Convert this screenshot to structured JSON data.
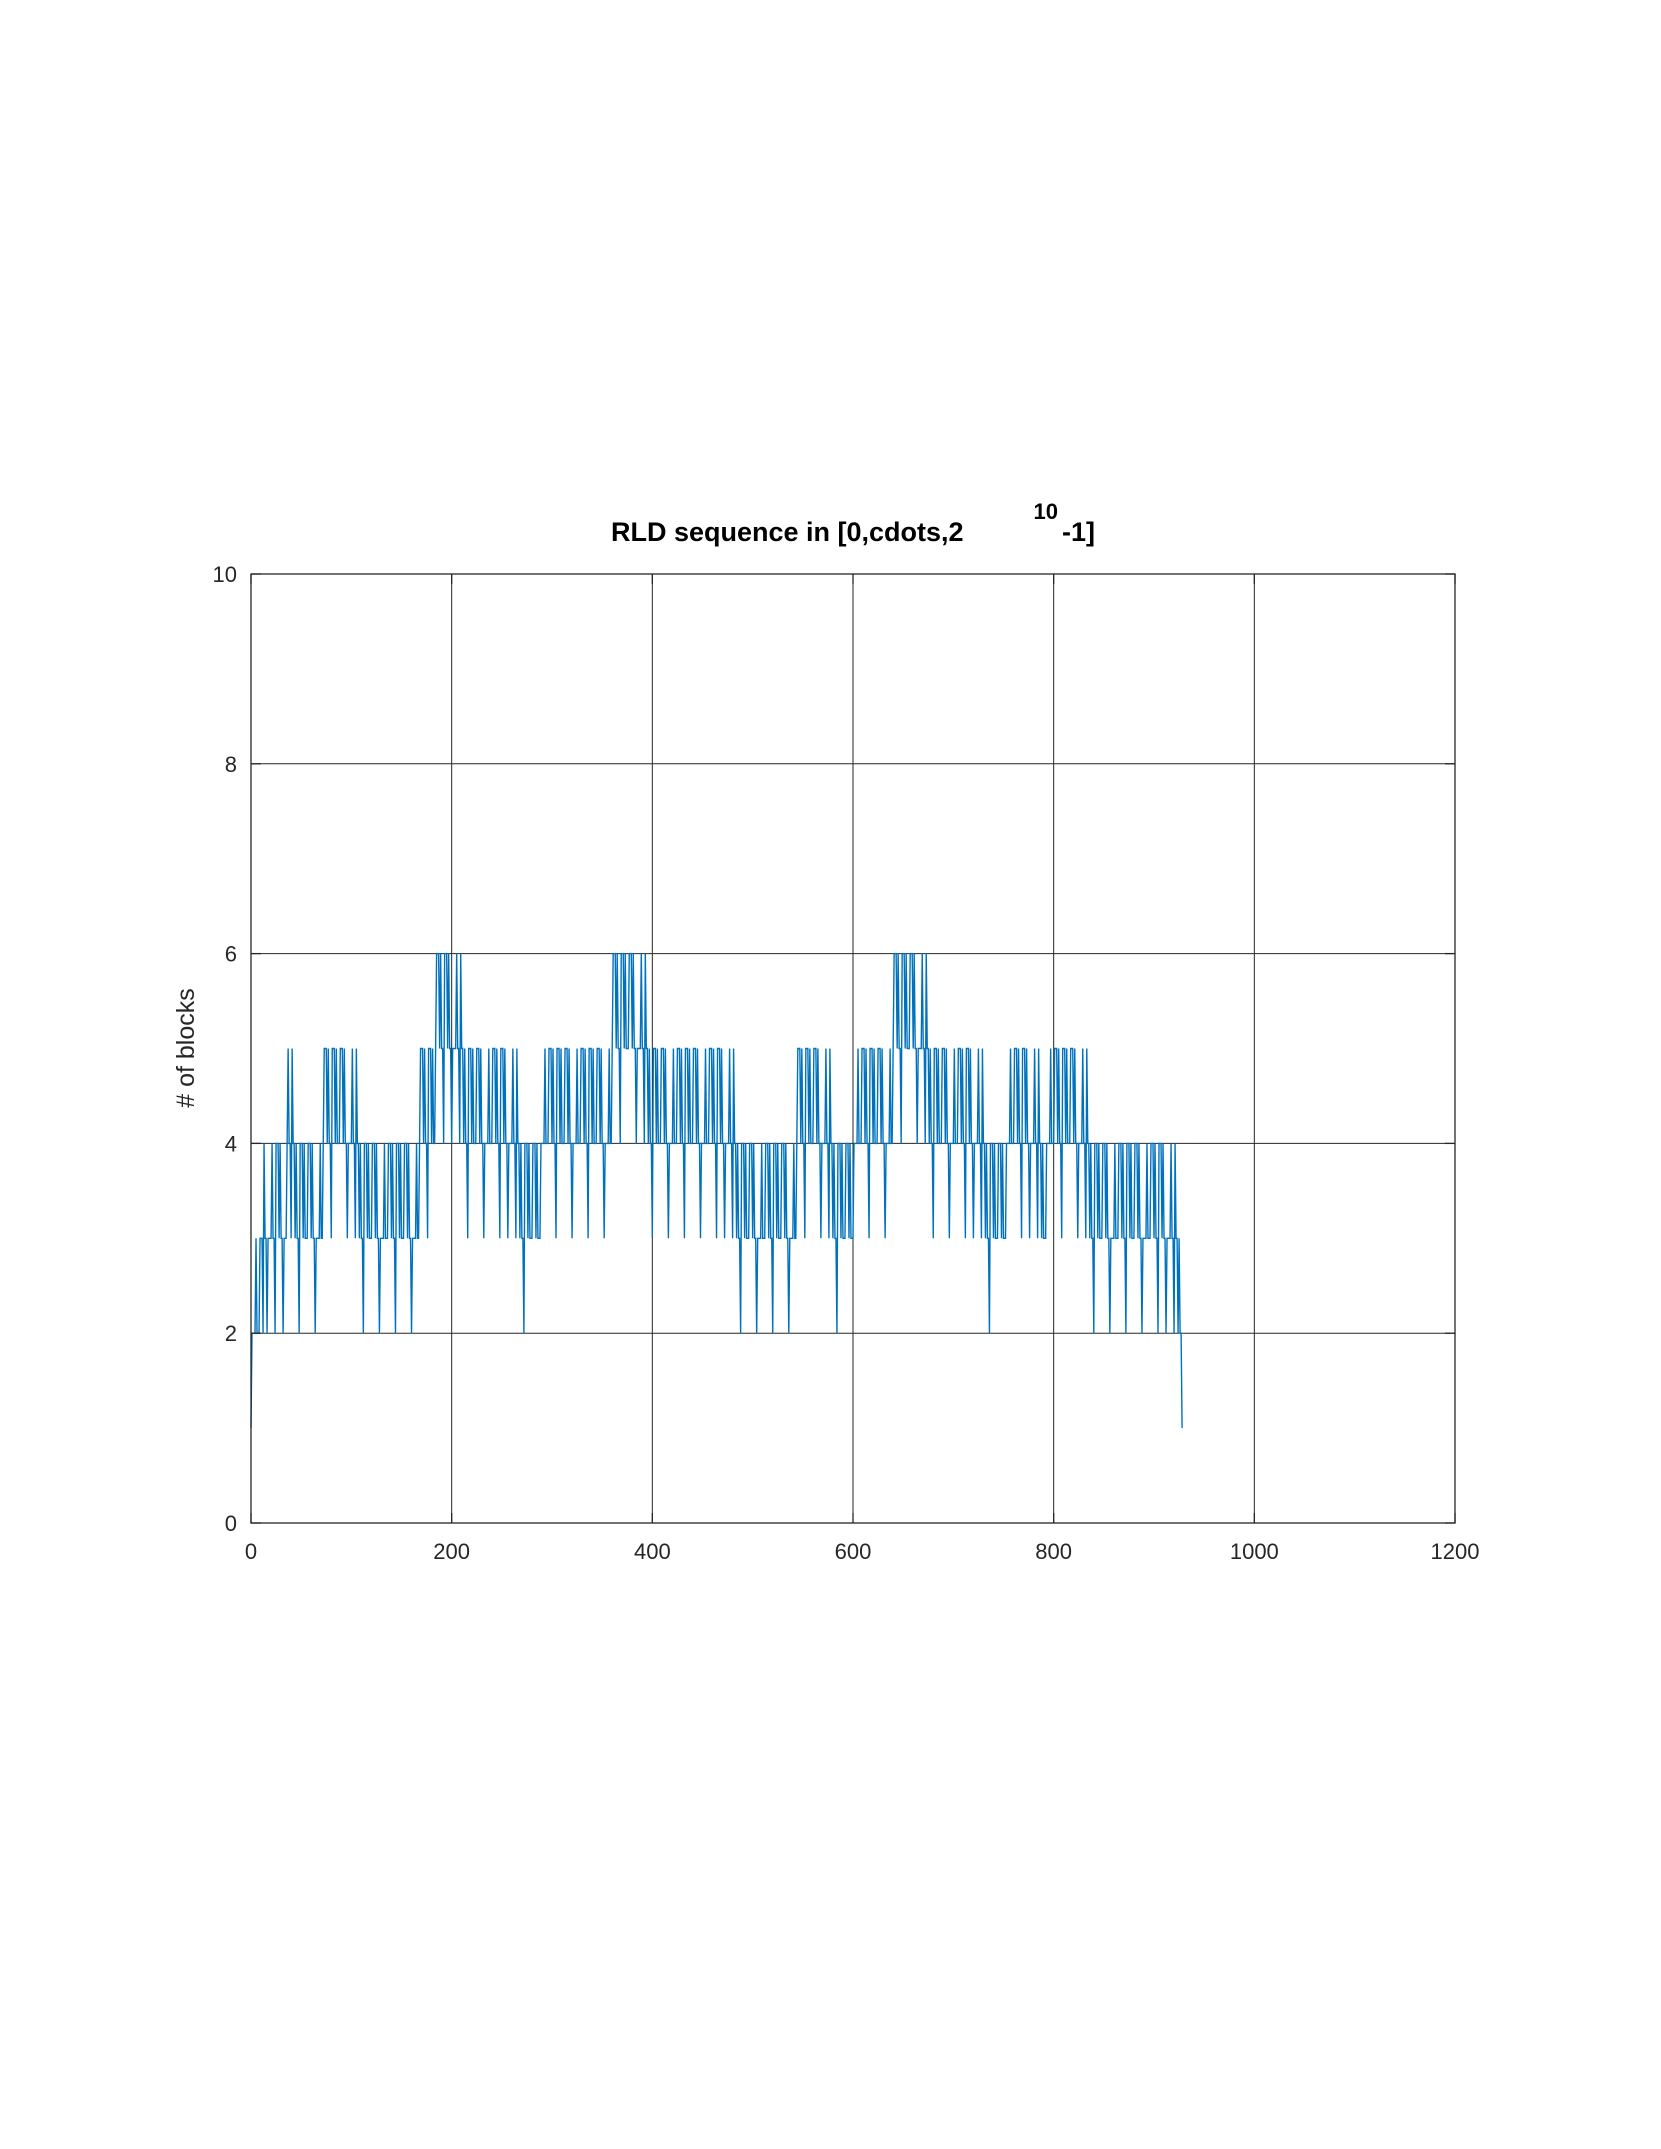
{
  "chart_data": {
    "type": "line",
    "title": "RLD sequence in [0,cdots,2",
    "title_superscript": "10",
    "title_suffix": "-1]",
    "xlabel": "",
    "ylabel": "# of blocks",
    "xlim": [
      0,
      1200
    ],
    "ylim": [
      0,
      10
    ],
    "xticks": [
      0,
      200,
      400,
      600,
      800,
      1000,
      1200
    ],
    "yticks": [
      0,
      2,
      4,
      6,
      8,
      10
    ],
    "grid": true,
    "series": [
      {
        "color": "#0072BD",
        "x_start": 0,
        "x_step": 1,
        "values": [
          1,
          2,
          2,
          2,
          2,
          3,
          2,
          2,
          2,
          3,
          3,
          3,
          2,
          4,
          3,
          3,
          2,
          3,
          3,
          3,
          3,
          4,
          3,
          3,
          2,
          4,
          4,
          4,
          3,
          4,
          3,
          3,
          2,
          3,
          3,
          3,
          4,
          5,
          4,
          4,
          3,
          5,
          4,
          4,
          3,
          4,
          3,
          3,
          2,
          4,
          4,
          4,
          3,
          4,
          3,
          3,
          3,
          4,
          4,
          4,
          3,
          4,
          3,
          3,
          2,
          3,
          3,
          3,
          3,
          4,
          3,
          3,
          4,
          5,
          5,
          5,
          4,
          5,
          4,
          4,
          3,
          5,
          5,
          5,
          4,
          5,
          4,
          4,
          4,
          5,
          5,
          5,
          4,
          5,
          4,
          4,
          3,
          4,
          4,
          4,
          4,
          5,
          4,
          4,
          3,
          5,
          4,
          4,
          3,
          4,
          3,
          3,
          2,
          4,
          4,
          4,
          3,
          4,
          3,
          3,
          3,
          4,
          4,
          4,
          3,
          4,
          3,
          3,
          2,
          3,
          3,
          3,
          3,
          4,
          3,
          3,
          3,
          4,
          4,
          4,
          3,
          4,
          3,
          3,
          2,
          4,
          4,
          4,
          3,
          4,
          3,
          3,
          3,
          4,
          4,
          4,
          3,
          4,
          3,
          3,
          2,
          3,
          3,
          3,
          3,
          4,
          3,
          3,
          4,
          5,
          5,
          5,
          4,
          5,
          4,
          4,
          3,
          5,
          5,
          5,
          4,
          5,
          4,
          4,
          5,
          6,
          6,
          6,
          5,
          6,
          5,
          5,
          4,
          6,
          6,
          6,
          5,
          6,
          5,
          5,
          4,
          5,
          5,
          5,
          5,
          6,
          5,
          5,
          4,
          6,
          5,
          5,
          4,
          5,
          4,
          4,
          3,
          5,
          5,
          5,
          4,
          5,
          4,
          4,
          4,
          5,
          5,
          5,
          4,
          5,
          4,
          4,
          3,
          4,
          4,
          4,
          4,
          5,
          4,
          4,
          4,
          5,
          5,
          5,
          4,
          5,
          4,
          4,
          3,
          5,
          5,
          5,
          4,
          5,
          4,
          4,
          3,
          4,
          4,
          4,
          4,
          5,
          4,
          4,
          3,
          5,
          4,
          4,
          3,
          4,
          3,
          3,
          2,
          4,
          4,
          4,
          3,
          4,
          3,
          3,
          3,
          4,
          4,
          4,
          3,
          4,
          3,
          3,
          3,
          4,
          4,
          4,
          4,
          5,
          4,
          4,
          4,
          5,
          5,
          5,
          4,
          5,
          4,
          4,
          3,
          5,
          5,
          5,
          4,
          5,
          4,
          4,
          4,
          5,
          5,
          5,
          4,
          5,
          4,
          4,
          3,
          4,
          4,
          4,
          4,
          5,
          4,
          4,
          4,
          5,
          5,
          5,
          4,
          5,
          4,
          4,
          3,
          5,
          5,
          5,
          4,
          5,
          4,
          4,
          4,
          5,
          5,
          5,
          4,
          5,
          4,
          4,
          3,
          4,
          4,
          4,
          4,
          5,
          4,
          4,
          5,
          6,
          6,
          6,
          5,
          6,
          5,
          5,
          4,
          6,
          6,
          6,
          5,
          6,
          5,
          5,
          5,
          6,
          6,
          6,
          5,
          6,
          5,
          5,
          4,
          5,
          5,
          5,
          5,
          6,
          5,
          5,
          4,
          6,
          5,
          5,
          4,
          5,
          4,
          4,
          3,
          5,
          5,
          5,
          4,
          5,
          4,
          4,
          4,
          5,
          5,
          5,
          4,
          5,
          4,
          4,
          3,
          4,
          4,
          4,
          4,
          5,
          4,
          4,
          4,
          5,
          5,
          5,
          4,
          5,
          4,
          4,
          3,
          5,
          5,
          5,
          4,
          5,
          4,
          4,
          4,
          5,
          5,
          5,
          4,
          5,
          4,
          4,
          3,
          4,
          4,
          4,
          4,
          5,
          4,
          4,
          4,
          5,
          5,
          5,
          4,
          5,
          4,
          4,
          3,
          5,
          5,
          5,
          4,
          5,
          4,
          4,
          3,
          4,
          4,
          4,
          4,
          5,
          4,
          4,
          3,
          5,
          4,
          4,
          3,
          4,
          3,
          3,
          2,
          4,
          4,
          4,
          3,
          4,
          3,
          3,
          3,
          4,
          4,
          4,
          3,
          4,
          3,
          3,
          2,
          3,
          3,
          3,
          3,
          4,
          3,
          3,
          3,
          4,
          4,
          4,
          3,
          4,
          3,
          3,
          2,
          4,
          4,
          4,
          3,
          4,
          3,
          3,
          3,
          4,
          4,
          4,
          3,
          4,
          3,
          3,
          2,
          3,
          3,
          3,
          3,
          4,
          3,
          3,
          4,
          5,
          5,
          5,
          4,
          5,
          4,
          4,
          3,
          5,
          5,
          5,
          4,
          5,
          4,
          4,
          4,
          5,
          5,
          5,
          4,
          5,
          4,
          4,
          3,
          4,
          4,
          4,
          4,
          5,
          4,
          4,
          3,
          5,
          4,
          4,
          3,
          4,
          3,
          3,
          2,
          4,
          4,
          4,
          3,
          4,
          3,
          3,
          3,
          4,
          4,
          4,
          3,
          4,
          3,
          3,
          3,
          4,
          4,
          4,
          4,
          5,
          4,
          4,
          4,
          5,
          5,
          5,
          4,
          5,
          4,
          4,
          3,
          5,
          5,
          5,
          4,
          5,
          4,
          4,
          4,
          5,
          5,
          5,
          4,
          5,
          4,
          4,
          3,
          4,
          4,
          4,
          4,
          5,
          4,
          4,
          5,
          6,
          6,
          6,
          5,
          6,
          5,
          5,
          4,
          6,
          6,
          6,
          5,
          6,
          5,
          5,
          5,
          6,
          6,
          6,
          5,
          6,
          5,
          5,
          4,
          5,
          5,
          5,
          5,
          6,
          5,
          5,
          4,
          6,
          5,
          5,
          4,
          5,
          4,
          4,
          3,
          5,
          5,
          5,
          4,
          5,
          4,
          4,
          4,
          5,
          5,
          5,
          4,
          5,
          4,
          4,
          3,
          4,
          4,
          4,
          4,
          5,
          4,
          4,
          4,
          5,
          5,
          5,
          4,
          5,
          4,
          4,
          3,
          5,
          5,
          5,
          4,
          5,
          4,
          4,
          3,
          4,
          4,
          4,
          4,
          5,
          4,
          4,
          3,
          5,
          4,
          4,
          3,
          4,
          3,
          3,
          2,
          4,
          4,
          4,
          3,
          4,
          3,
          3,
          3,
          4,
          4,
          4,
          3,
          4,
          3,
          3,
          3,
          4,
          4,
          4,
          4,
          5,
          4,
          4,
          4,
          5,
          5,
          5,
          4,
          5,
          4,
          4,
          3,
          5,
          5,
          5,
          4,
          5,
          4,
          4,
          3,
          4,
          4,
          4,
          4,
          5,
          4,
          4,
          3,
          5,
          4,
          4,
          3,
          4,
          3,
          3,
          3,
          4,
          4,
          4,
          4,
          5,
          4,
          4,
          4,
          5,
          5,
          5,
          4,
          5,
          4,
          4,
          3,
          5,
          5,
          5,
          4,
          5,
          4,
          4,
          4,
          5,
          5,
          5,
          4,
          5,
          4,
          4,
          3,
          4,
          4,
          4,
          4,
          5,
          4,
          4,
          3,
          5,
          4,
          4,
          3,
          4,
          3,
          3,
          2,
          4,
          4,
          4,
          3,
          4,
          3,
          3,
          3,
          4,
          4,
          4,
          3,
          4,
          3,
          3,
          2,
          3,
          3,
          3,
          3,
          4,
          3,
          3,
          3,
          4,
          4,
          4,
          3,
          4,
          3,
          3,
          2,
          4,
          4,
          4,
          3,
          4,
          3,
          3,
          3,
          4,
          4,
          4,
          3,
          4,
          3,
          3,
          2,
          3,
          3,
          3,
          3,
          4,
          3,
          3,
          3,
          4,
          4,
          4,
          3,
          4,
          3,
          3,
          2,
          4,
          4,
          4,
          3,
          4,
          3,
          3,
          2,
          3,
          3,
          3,
          3,
          4,
          3,
          3,
          2,
          4,
          3,
          3,
          2,
          3,
          2,
          2,
          1
        ]
      }
    ]
  }
}
